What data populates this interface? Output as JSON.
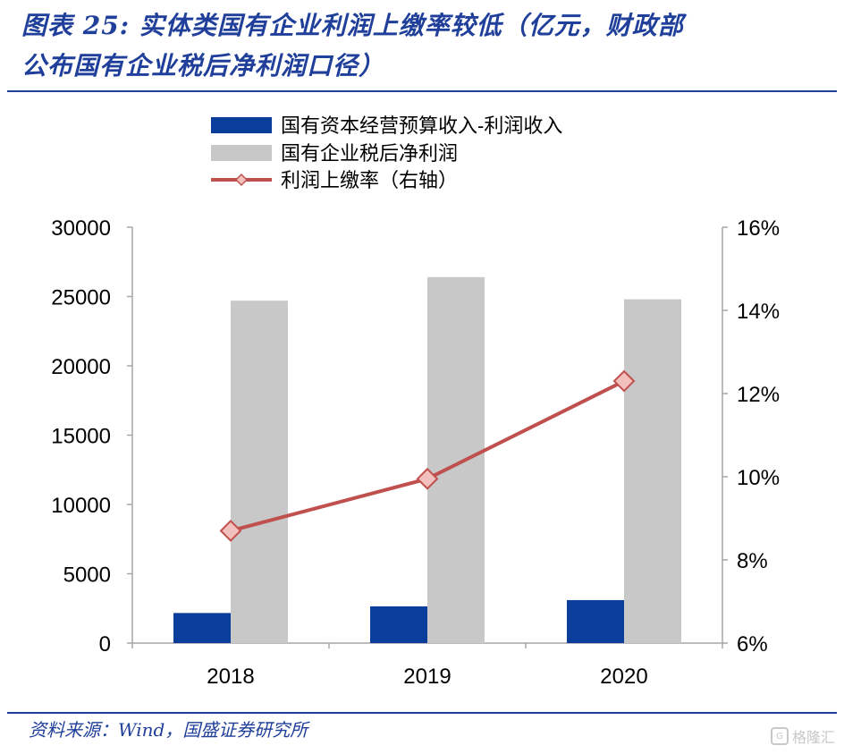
{
  "figure": {
    "title_line1": "图表 25:  实体类国有企业利润上缴率较低（亿元，财政部",
    "title_line2": "公布国有企业税后净利润口径）",
    "source": "资料来源：Wind，国盛证券研究所",
    "watermark": "格隆汇"
  },
  "colors": {
    "bar_dark": "#0b3d9c",
    "bar_grey": "#c8c8c8",
    "line": "#c0504d",
    "marker_fill": "#f2c0bd",
    "brand": "#1f3f9a"
  },
  "chart_data": {
    "type": "bar",
    "categories": [
      "2018",
      "2019",
      "2020"
    ],
    "series": [
      {
        "name": "国有资本经营预算收入-利润收入",
        "type": "bar",
        "axis": "left",
        "values": [
          2170,
          2650,
          3100
        ]
      },
      {
        "name": "国有企业税后净利润",
        "type": "bar",
        "axis": "left",
        "values": [
          24700,
          26400,
          24800
        ]
      },
      {
        "name": "利润上缴率（右轴）",
        "type": "line",
        "axis": "right",
        "values": [
          8.7,
          9.95,
          12.3
        ]
      }
    ],
    "ylim_left": [
      0,
      30000
    ],
    "yticks_left": [
      "30000",
      "25000",
      "20000",
      "15000",
      "10000",
      "5000",
      "0"
    ],
    "ylim_right": [
      6,
      16
    ],
    "yticks_right": [
      "16%",
      "14%",
      "12%",
      "10%",
      "8%",
      "6%"
    ],
    "legend_placement": "top-center",
    "grid": false
  }
}
